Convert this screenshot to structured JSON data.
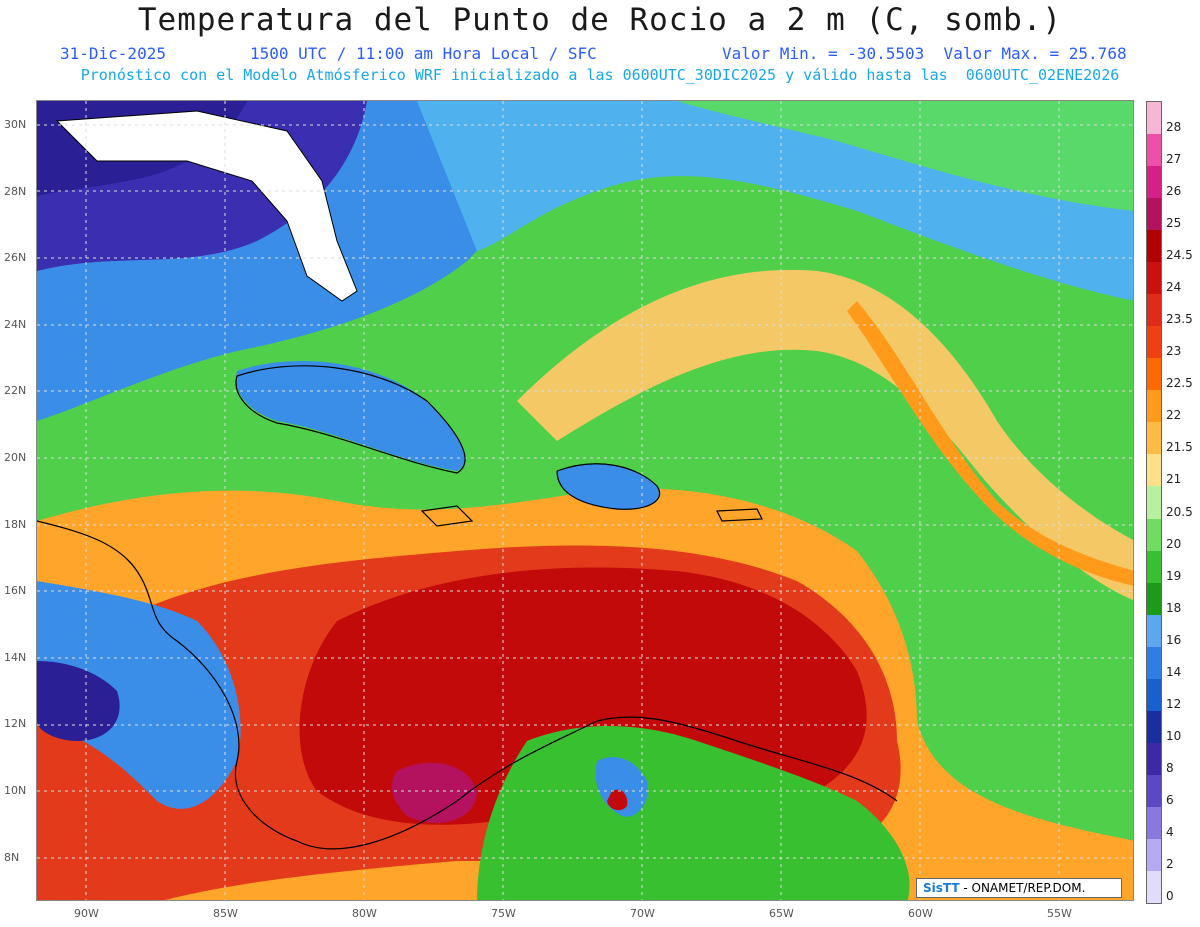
{
  "header": {
    "title": "Temperatura del Punto de Rocio a 2 m (C, somb.)",
    "date": "31-Dic-2025",
    "time": "1500 UTC / 11:00 am Hora Local / SFC",
    "minmax": "Valor Min. = -30.5503  Valor Max. = 25.768",
    "model_line": "Pronóstico con el Modelo Atmósferico WRF inicializado a las 0600UTC_30DIC2025 y válido hasta las  0600UTC_02ENE2026"
  },
  "axes": {
    "lat_labels": [
      "30N",
      "28N",
      "26N",
      "24N",
      "22N",
      "20N",
      "18N",
      "16N",
      "14N",
      "12N",
      "10N",
      "8N"
    ],
    "lon_labels": [
      "90W",
      "85W",
      "80W",
      "75W",
      "70W",
      "65W",
      "60W",
      "55W"
    ]
  },
  "credit": {
    "brand": "SisTT",
    "org": " - ONAMET/REP.DOM."
  },
  "colorbar": {
    "levels": [
      "28",
      "27",
      "26",
      "25",
      "24.5",
      "24",
      "23.5",
      "23",
      "22.5",
      "22",
      "21.5",
      "21",
      "20.5",
      "20",
      "19",
      "18",
      "16",
      "14",
      "12",
      "10",
      "8",
      "6",
      "4",
      "2",
      "0"
    ],
    "colors": [
      "#f7b6d6",
      "#ee4fa8",
      "#d61f88",
      "#b4125e",
      "#b00000",
      "#cc1010",
      "#e02a1a",
      "#f04010",
      "#ff6a00",
      "#ff9a1a",
      "#ffbb44",
      "#ffe08a",
      "#b8f0a0",
      "#70dd60",
      "#38c030",
      "#1a9c1a",
      "#5aa8f0",
      "#2e7ee6",
      "#1860cf",
      "#1a2e9e",
      "#3d28a8",
      "#5a48c4",
      "#8a78e0",
      "#b6aaf2",
      "#e0dcfa"
    ]
  }
}
